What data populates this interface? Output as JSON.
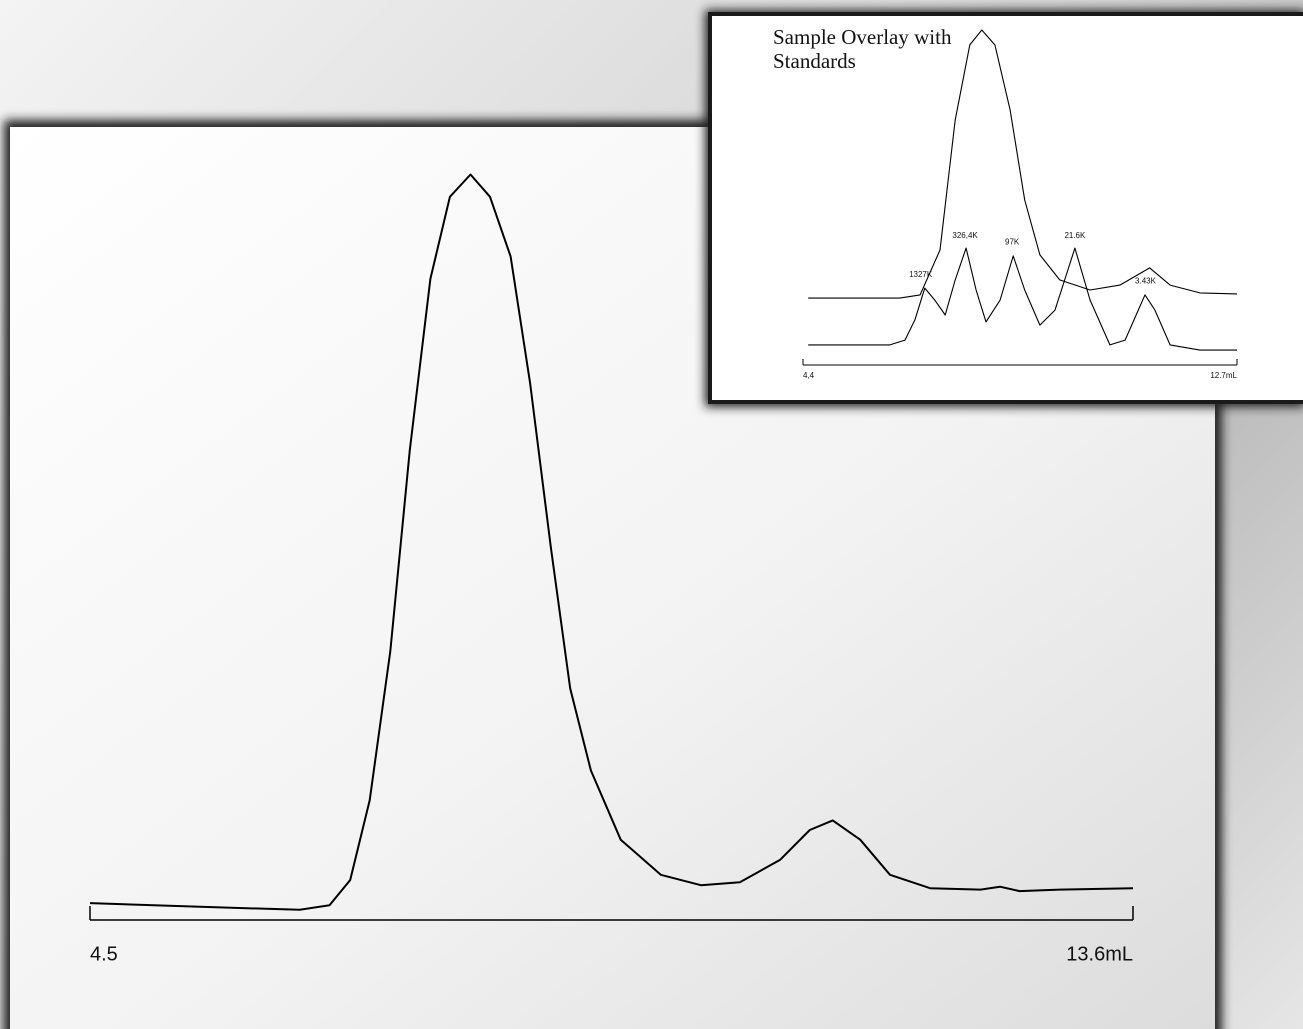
{
  "chart_data": [
    {
      "type": "line",
      "xlim": [
        4.5,
        13.6
      ],
      "xticks": [
        4.5,
        {
          "value": 13.6,
          "label": "13.6mL"
        }
      ],
      "ylim": [
        0,
        100
      ],
      "series": [
        {
          "color": "#000000",
          "x": [
            4.5,
            5.46,
            6.33,
            6.59,
            6.77,
            6.94,
            7.12,
            7.29,
            7.47,
            7.64,
            7.82,
            7.99,
            8.17,
            8.34,
            8.52,
            8.69,
            8.87,
            9.13,
            9.48,
            9.83,
            10.17,
            10.52,
            10.78,
            10.98,
            11.22,
            11.48,
            11.83,
            12.27,
            12.44,
            12.61,
            12.96,
            13.6
          ],
          "values": [
            1.2,
            0.7,
            0.3,
            0.9,
            4.3,
            15,
            35,
            62,
            85,
            96,
            99,
            96,
            88,
            71,
            49,
            30,
            19,
            9.7,
            5,
            3.6,
            4,
            7,
            11,
            12.3,
            9.7,
            5,
            3.2,
            3,
            3.4,
            2.8,
            3,
            3.2
          ]
        }
      ]
    },
    {
      "type": "line",
      "title": "Sample Overlay with Standards",
      "xlim": [
        4.4,
        12.7
      ],
      "xticks": [
        {
          "value": 4.4,
          "label": "4,4"
        },
        {
          "value": 12.7,
          "label": "12.7mL"
        }
      ],
      "ylim": [
        0,
        100
      ],
      "series": [
        {
          "color": "#000000",
          "x": [
            4.5,
            6.25,
            6.64,
            7.02,
            7.31,
            7.59,
            7.82,
            8.07,
            8.36,
            8.64,
            8.93,
            9.31,
            9.89,
            10.46,
            11.03,
            11.42,
            11.99,
            12.7
          ],
          "values": [
            17.5,
            17.5,
            18.5,
            32.3,
            72.3,
            95.4,
            100,
            95.4,
            75.4,
            47.7,
            30.8,
            23.1,
            20,
            21.5,
            26.8,
            21.5,
            19.1,
            18.8
          ]
        },
        {
          "color": "#000000",
          "x": [
            4.5,
            6.06,
            6.35,
            6.54,
            6.73,
            6.92,
            7.12,
            7.31,
            7.52,
            7.71,
            7.9,
            8.17,
            8.42,
            8.64,
            8.93,
            9.22,
            9.6,
            9.89,
            10.27,
            10.56,
            10.94,
            11.13,
            11.42,
            11.99,
            12.7
          ],
          "values": [
            3.1,
            3.1,
            4.6,
            10.8,
            20.6,
            16.9,
            12.3,
            23.1,
            32.9,
            20,
            10.2,
            16.9,
            30.5,
            20,
            9.2,
            13.8,
            32.9,
            16.9,
            3.1,
            4.6,
            18.5,
            13.8,
            3.1,
            1.5,
            1.5
          ]
        }
      ],
      "annotations": [
        {
          "text": "1327K",
          "x": 6.65,
          "y": 24
        },
        {
          "text": "326,4K",
          "x": 7.5,
          "y": 36
        },
        {
          "text": "97K",
          "x": 8.4,
          "y": 34
        },
        {
          "text": "21.6K",
          "x": 9.6,
          "y": 36
        },
        {
          "text": "3.43K",
          "x": 10.95,
          "y": 22
        }
      ]
    }
  ]
}
